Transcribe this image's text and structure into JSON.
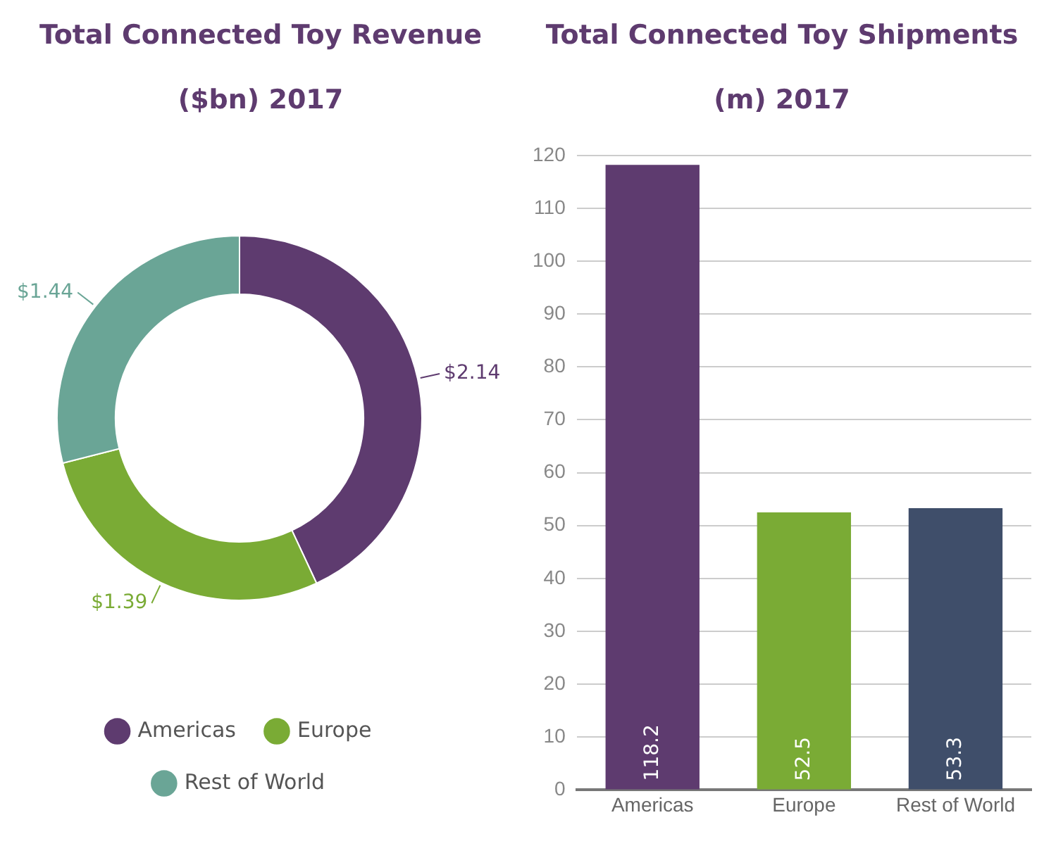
{
  "chart_data": [
    {
      "type": "donut",
      "title": "Total Connected Toy Revenue ($bn) 2017",
      "categories": [
        "Americas",
        "Europe",
        "Rest of World"
      ],
      "values": [
        2.14,
        1.39,
        1.44
      ],
      "colors": [
        "#5e3b6f",
        "#7aab35",
        "#6aa596"
      ],
      "value_labels": [
        "$2.14",
        "$1.39",
        "$1.44"
      ],
      "legend": "bottom",
      "marker": "circle"
    },
    {
      "type": "bar",
      "title": "Total Connected Toy Shipments (m) 2017",
      "categories": [
        "Americas",
        "Europe",
        "Rest of World"
      ],
      "values": [
        118.2,
        52.5,
        53.3
      ],
      "colors": [
        "#5e3b6f",
        "#7aab35",
        "#3f4e6a"
      ],
      "ylim": [
        0,
        120
      ],
      "yticks": [
        0,
        10,
        20,
        30,
        40,
        50,
        60,
        70,
        80,
        90,
        100,
        110,
        120
      ],
      "grid": "y",
      "data_labels": true,
      "legend": false
    }
  ]
}
